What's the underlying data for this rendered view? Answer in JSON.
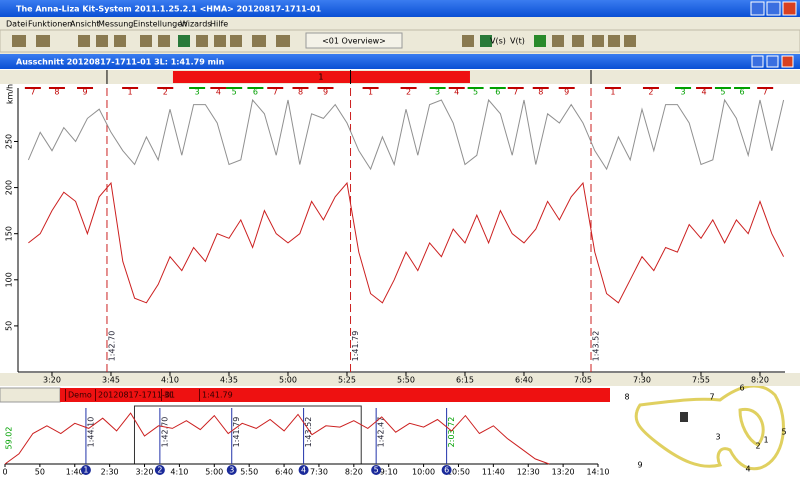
{
  "window": {
    "title": "The Anna-Liza  Kit-System 2011.1.25.2.1  <HMA>  20120817-1711-01"
  },
  "menu": [
    "Datei",
    "Funktionen",
    "Ansicht",
    "Messung",
    "Einstellungen",
    "Wizards",
    "Hilfe"
  ],
  "toolbar": {
    "overview": "<01 Overview>",
    "buttons": [
      "V(s)",
      "V(t)"
    ]
  },
  "inner_window": {
    "title": "Ausschnitt  20120817-1711-01 3L: 1:41.79 min"
  },
  "main_chart": {
    "lap_bar_label": "1",
    "y_unit": "km/h",
    "sectors": [
      {
        "label": "7",
        "color": "#c00000",
        "t": 191.9
      },
      {
        "label": "8",
        "color": "#c00000",
        "t": 202.1
      },
      {
        "label": "9",
        "color": "#c00000",
        "t": 214.0
      },
      {
        "label": "1",
        "color": "#c00000",
        "t": 233.1
      },
      {
        "label": "2",
        "color": "#c00000",
        "t": 248.0
      },
      {
        "label": "3",
        "color": "#00a000",
        "t": 261.5
      },
      {
        "label": "4",
        "color": "#c00000",
        "t": 270.5
      },
      {
        "label": "5",
        "color": "#00a000",
        "t": 277.2
      },
      {
        "label": "6",
        "color": "#00a000",
        "t": 286.2
      },
      {
        "label": "7",
        "color": "#c00000",
        "t": 294.6
      },
      {
        "label": "8",
        "color": "#c00000",
        "t": 305.3
      },
      {
        "label": "9",
        "color": "#c00000",
        "t": 315.9
      },
      {
        "label": "1",
        "color": "#c00000",
        "t": 335.0
      },
      {
        "label": "2",
        "color": "#c00000",
        "t": 351.1
      },
      {
        "label": "3",
        "color": "#00a000",
        "t": 363.4
      },
      {
        "label": "4",
        "color": "#c00000",
        "t": 371.5
      },
      {
        "label": "5",
        "color": "#00a000",
        "t": 379.5
      },
      {
        "label": "6",
        "color": "#00a000",
        "t": 388.9
      },
      {
        "label": "7",
        "color": "#c00000",
        "t": 396.5
      },
      {
        "label": "8",
        "color": "#c00000",
        "t": 407.1
      },
      {
        "label": "9",
        "color": "#c00000",
        "t": 418.1
      },
      {
        "label": "1",
        "color": "#c00000",
        "t": 437.7
      },
      {
        "label": "2",
        "color": "#c00000",
        "t": 453.8
      },
      {
        "label": "3",
        "color": "#00a000",
        "t": 467.4
      },
      {
        "label": "4",
        "color": "#c00000",
        "t": 476.3
      },
      {
        "label": "5",
        "color": "#00a000",
        "t": 484.3
      },
      {
        "label": "6",
        "color": "#00a000",
        "t": 492.4
      },
      {
        "label": "7",
        "color": "#c00000",
        "t": 502.2
      }
    ],
    "xlim": [
      185.6,
      510.6
    ],
    "ylim": [
      0,
      308
    ],
    "xticks": [
      {
        "value": 200,
        "label": "3:20"
      },
      {
        "value": 225,
        "label": "3:45"
      },
      {
        "value": 250,
        "label": "4:10"
      },
      {
        "value": 275,
        "label": "4:35"
      },
      {
        "value": 300,
        "label": "5:00"
      },
      {
        "value": 325,
        "label": "5:25"
      },
      {
        "value": 350,
        "label": "5:50"
      },
      {
        "value": 375,
        "label": "6:15"
      },
      {
        "value": 400,
        "label": "6:40"
      },
      {
        "value": 425,
        "label": "7:05"
      },
      {
        "value": 450,
        "label": "7:30"
      },
      {
        "value": 475,
        "label": "7:55"
      },
      {
        "value": 500,
        "label": "8:20"
      }
    ],
    "yticks": [
      50,
      100,
      150,
      200,
      250
    ],
    "laps": [
      {
        "t": 223.3,
        "label": "1:42.70"
      },
      {
        "t": 326.5,
        "label": "1:41.79"
      },
      {
        "t": 428.4,
        "label": "1:43.52"
      }
    ],
    "x": [
      190,
      195,
      200,
      205,
      210,
      215,
      220,
      225,
      230,
      235,
      240,
      245,
      250,
      255,
      260,
      265,
      270,
      275,
      280,
      285,
      290,
      295,
      300,
      305,
      310,
      315,
      320,
      325,
      330,
      335,
      340,
      345,
      350,
      355,
      360,
      365,
      370,
      375,
      380,
      385,
      390,
      395,
      400,
      405,
      410,
      415,
      420,
      425,
      430,
      435,
      440,
      445,
      450,
      455,
      460,
      465,
      470,
      475,
      480,
      485,
      490,
      495,
      500,
      505,
      510
    ],
    "series": [
      {
        "color": "#909090",
        "values": [
          230,
          260,
          240,
          265,
          250,
          275,
          285,
          260,
          240,
          225,
          255,
          230,
          285,
          235,
          290,
          290,
          270,
          225,
          230,
          295,
          280,
          235,
          295,
          225,
          280,
          275,
          290,
          270,
          240,
          220,
          255,
          225,
          285,
          235,
          290,
          295,
          270,
          225,
          235,
          295,
          280,
          235,
          295,
          225,
          280,
          270,
          290,
          270,
          240,
          220,
          255,
          230,
          285,
          240,
          290,
          290,
          270,
          225,
          230,
          295,
          275,
          235,
          295,
          240,
          295
        ]
      },
      {
        "color": "#cc2020",
        "values": [
          140,
          150,
          175,
          195,
          185,
          150,
          190,
          205,
          120,
          80,
          75,
          95,
          125,
          110,
          135,
          120,
          150,
          145,
          165,
          135,
          175,
          150,
          140,
          150,
          185,
          165,
          190,
          205,
          130,
          85,
          75,
          100,
          130,
          110,
          140,
          125,
          155,
          140,
          170,
          140,
          175,
          150,
          140,
          155,
          185,
          165,
          190,
          205,
          130,
          85,
          75,
          100,
          125,
          110,
          135,
          130,
          160,
          145,
          165,
          140,
          165,
          150,
          185,
          150,
          125
        ]
      }
    ]
  },
  "overview_bar": {
    "cells": [
      "Demo",
      "20120817-1711-01",
      "3L",
      "1:41.79"
    ]
  },
  "overview_chart": {
    "xlim": [
      0,
      850
    ],
    "ylim": [
      0,
      220
    ],
    "start_label": "59.02",
    "xticks": [
      0,
      50,
      {
        "value": 100,
        "label": "1:40"
      },
      {
        "value": 150,
        "label": "2:30"
      },
      {
        "value": 200,
        "label": "3:20"
      },
      {
        "value": 250,
        "label": "4:10"
      },
      {
        "value": 300,
        "label": "5:00"
      },
      {
        "value": 350,
        "label": "5:50"
      },
      {
        "value": 400,
        "label": "6:40"
      },
      {
        "value": 450,
        "label": "7:30"
      },
      {
        "value": 500,
        "label": "8:20"
      },
      {
        "value": 550,
        "label": "9:10"
      },
      {
        "value": 600,
        "label": "10:00"
      },
      {
        "value": 650,
        "label": "10:50"
      },
      {
        "value": 700,
        "label": "11:40"
      },
      {
        "value": 750,
        "label": "12:30"
      },
      {
        "value": 800,
        "label": "13:20"
      },
      {
        "value": 850,
        "label": "14:10"
      }
    ],
    "laps": [
      {
        "t": 116,
        "label": "1:44.10",
        "number": "1"
      },
      {
        "t": 222,
        "label": "1:42.70",
        "number": "2"
      },
      {
        "t": 325,
        "label": "1:41.79",
        "number": "3"
      },
      {
        "t": 428,
        "label": "1:43.52",
        "number": "4"
      },
      {
        "t": 532,
        "label": "1:42.47",
        "number": "5"
      },
      {
        "t": 633,
        "label": "2:03.72",
        "number": "6"
      }
    ],
    "x": [
      0,
      20,
      40,
      60,
      80,
      100,
      120,
      140,
      160,
      180,
      200,
      220,
      240,
      260,
      280,
      300,
      320,
      340,
      360,
      380,
      400,
      420,
      440,
      460,
      480,
      500,
      520,
      540,
      560,
      580,
      600,
      620,
      640,
      660,
      680,
      700,
      720,
      740,
      760,
      780
    ],
    "values": [
      0,
      40,
      120,
      150,
      120,
      160,
      140,
      180,
      130,
      200,
      110,
      150,
      140,
      170,
      135,
      190,
      120,
      160,
      140,
      175,
      130,
      195,
      115,
      150,
      145,
      170,
      140,
      185,
      125,
      160,
      145,
      175,
      130,
      190,
      120,
      150,
      100,
      60,
      20,
      0
    ]
  },
  "track_map": {
    "labels": [
      "1",
      "2",
      "3",
      "4",
      "5",
      "6",
      "7",
      "8",
      "9"
    ]
  }
}
